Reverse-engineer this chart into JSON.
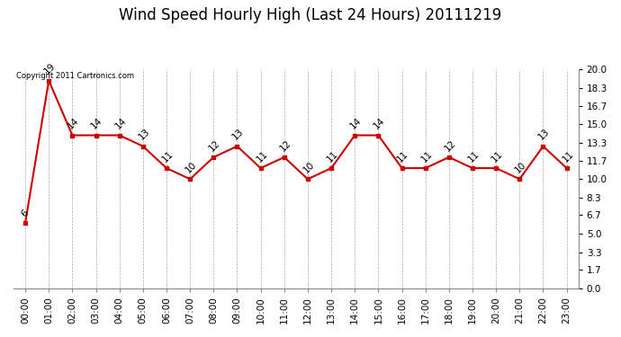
{
  "title": "Wind Speed Hourly High (Last 24 Hours) 20111219",
  "copyright": "Copyright 2011 Cartronics.com",
  "hours": [
    "00:00",
    "01:00",
    "02:00",
    "03:00",
    "04:00",
    "05:00",
    "06:00",
    "07:00",
    "08:00",
    "09:00",
    "10:00",
    "11:00",
    "12:00",
    "13:00",
    "14:00",
    "15:00",
    "16:00",
    "17:00",
    "18:00",
    "19:00",
    "20:00",
    "21:00",
    "22:00",
    "23:00"
  ],
  "wind_values": [
    6,
    19,
    14,
    14,
    14,
    13,
    11,
    10,
    12,
    13,
    11,
    12,
    10,
    11,
    14,
    14,
    11,
    11,
    12,
    11,
    11,
    10,
    13,
    11
  ],
  "yticks": [
    0.0,
    1.7,
    3.3,
    5.0,
    6.7,
    8.3,
    10.0,
    11.7,
    13.3,
    15.0,
    16.7,
    18.3,
    20.0
  ],
  "line_color": "#cc0000",
  "marker_color": "#cc0000",
  "bg_color": "#ffffff",
  "grid_color": "#aaaaaa",
  "title_fontsize": 12,
  "label_fontsize": 7.5,
  "annotation_fontsize": 7.5
}
